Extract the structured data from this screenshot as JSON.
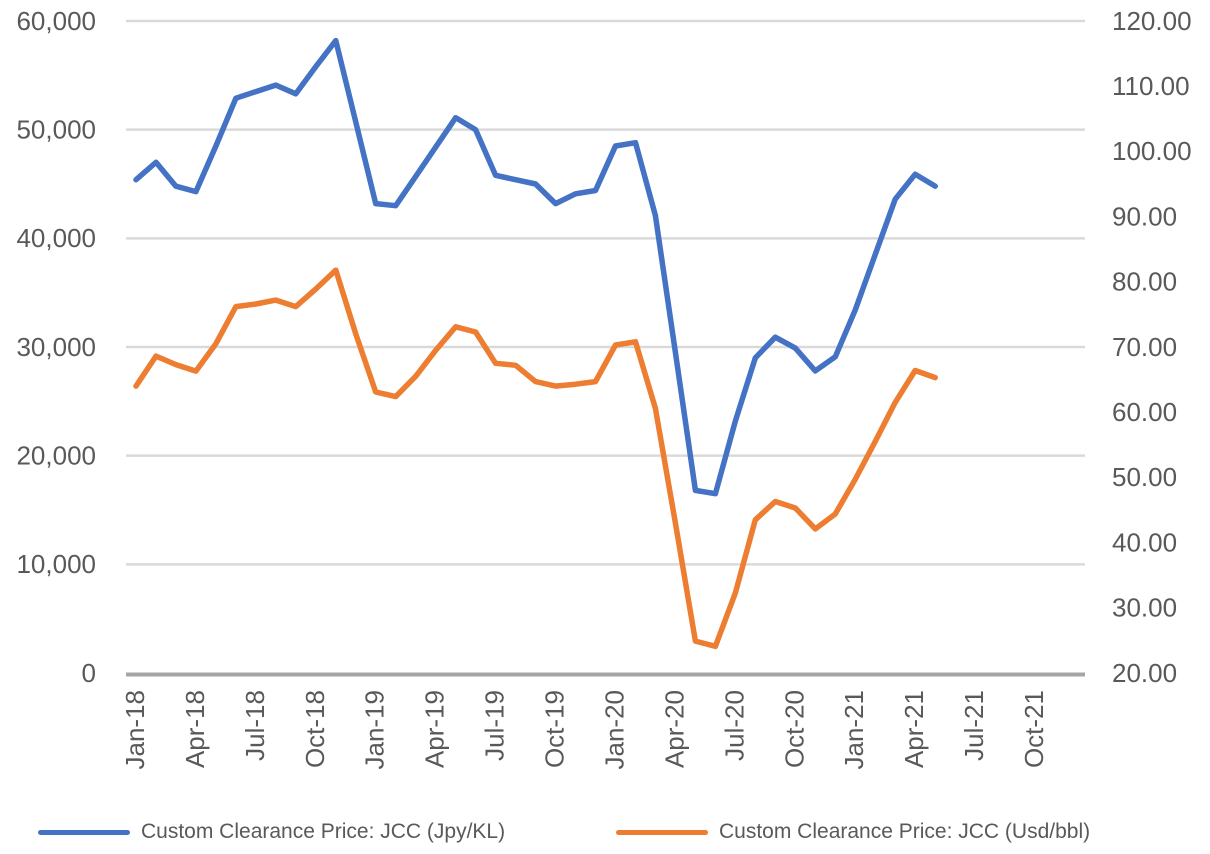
{
  "chart_data": {
    "type": "line",
    "title": "",
    "x_slots": 48,
    "x": [
      "Jan-18",
      "Feb-18",
      "Mar-18",
      "Apr-18",
      "May-18",
      "Jun-18",
      "Jul-18",
      "Aug-18",
      "Sep-18",
      "Oct-18",
      "Nov-18",
      "Dec-18",
      "Jan-19",
      "Feb-19",
      "Mar-19",
      "Apr-19",
      "May-19",
      "Jun-19",
      "Jul-19",
      "Aug-19",
      "Sep-19",
      "Oct-19",
      "Nov-19",
      "Dec-19",
      "Jan-20",
      "Feb-20",
      "Mar-20",
      "Apr-20",
      "May-20",
      "Jun-20",
      "Jul-20",
      "Aug-20",
      "Sep-20",
      "Oct-20",
      "Nov-20",
      "Dec-20",
      "Jan-21",
      "Feb-21",
      "Mar-21",
      "Apr-21",
      "May-21"
    ],
    "x_axis_tick_labels": [
      "Jan-18",
      "Apr-18",
      "Jul-18",
      "Oct-18",
      "Jan-19",
      "Apr-19",
      "Jul-19",
      "Oct-19",
      "Jan-20",
      "Apr-20",
      "Jul-20",
      "Oct-20",
      "Jan-21",
      "Apr-21",
      "Jul-21",
      "Oct-21"
    ],
    "series": [
      {
        "name": "Custom Clearance Price: JCC (Jpy/KL)",
        "axis": "left",
        "color": "#4472C4",
        "values": [
          45400,
          47000,
          44800,
          44300,
          48500,
          52900,
          53500,
          54100,
          53300,
          55800,
          58200,
          50700,
          43200,
          43000,
          45700,
          48400,
          51100,
          50000,
          45800,
          45400,
          45000,
          43200,
          44100,
          44400,
          48500,
          48800,
          42100,
          29500,
          16800,
          16500,
          23200,
          29000,
          30900,
          29900,
          27800,
          29100,
          33400,
          38500,
          43600,
          45900,
          44800
        ]
      },
      {
        "name": "Custom Clearance Price: JCC (Usd/bbl)",
        "axis": "right",
        "color": "#ED7D31",
        "values": [
          64.0,
          68.6,
          67.3,
          66.3,
          70.5,
          76.2,
          76.6,
          77.2,
          76.2,
          78.9,
          81.8,
          72.0,
          63.1,
          62.4,
          65.5,
          69.5,
          73.1,
          72.3,
          67.5,
          67.2,
          64.7,
          64.0,
          64.3,
          64.7,
          70.3,
          70.8,
          60.6,
          43.0,
          24.9,
          24.1,
          32.3,
          43.5,
          46.3,
          45.3,
          42.1,
          44.4,
          49.7,
          55.5,
          61.5,
          66.4,
          65.3
        ]
      }
    ],
    "left_axis": {
      "min": 0,
      "max": 60000,
      "step": 10000,
      "tick_labels": [
        "60,000",
        "50,000",
        "40,000",
        "30,000",
        "20,000",
        "10,000",
        "0"
      ]
    },
    "right_axis": {
      "min": 20,
      "max": 120,
      "step": 10,
      "tick_labels": [
        "120.00",
        "110.00",
        "100.00",
        "90.00",
        "80.00",
        "70.00",
        "60.00",
        "50.00",
        "40.00",
        "30.00",
        "20.00"
      ]
    },
    "grid": true,
    "legend_position": "bottom"
  },
  "colors": {
    "series_blue": "#4472C4",
    "series_orange": "#ED7D31",
    "gridline": "#D9D9D9",
    "axis_line": "#A6A6A6",
    "axis_text": "#595959",
    "background": "#FFFFFF"
  }
}
